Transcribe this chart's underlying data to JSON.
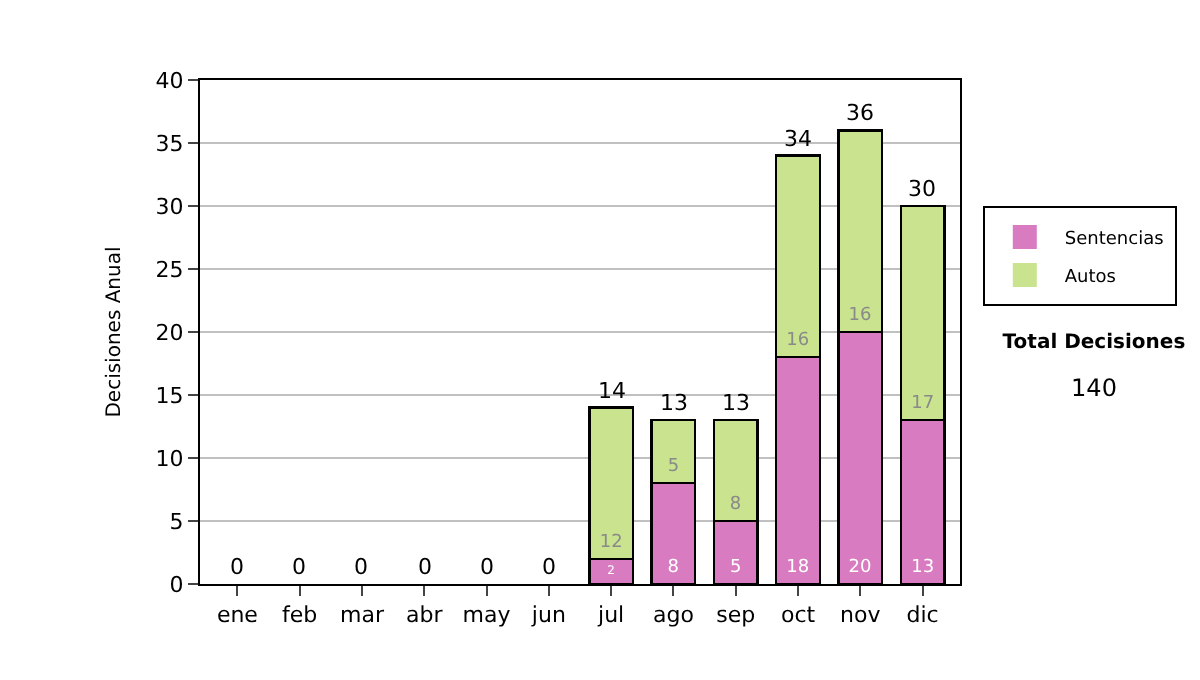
{
  "chart_data": {
    "type": "bar",
    "stacked": true,
    "ylabel": "Decisiones Anual",
    "categories": [
      "ene",
      "feb",
      "mar",
      "abr",
      "may",
      "jun",
      "jul",
      "ago",
      "sep",
      "oct",
      "nov",
      "dic"
    ],
    "series": [
      {
        "name": "Sentencias",
        "color": "#d97bc0",
        "values": [
          0,
          0,
          0,
          0,
          0,
          0,
          2,
          8,
          5,
          18,
          20,
          13
        ],
        "value_labels": [
          null,
          null,
          null,
          null,
          null,
          null,
          "2",
          "8",
          "5",
          "18",
          "20",
          "13"
        ]
      },
      {
        "name": "Autos",
        "color": "#c9e38e",
        "values": [
          0,
          0,
          0,
          0,
          0,
          0,
          12,
          5,
          8,
          16,
          16,
          17
        ],
        "value_labels": [
          null,
          null,
          null,
          null,
          null,
          null,
          "12",
          "5",
          "8",
          "16",
          "16",
          "17"
        ]
      }
    ],
    "totals": [
      "0",
      "0",
      "0",
      "0",
      "0",
      "0",
      "14",
      "13",
      "13",
      "34",
      "36",
      "30"
    ],
    "ylim": [
      0,
      40
    ],
    "yticks": [
      0,
      5,
      10,
      15,
      20,
      25,
      30,
      35,
      40
    ],
    "grid": "y",
    "legend": "right",
    "annotations": [
      "Total Decisiones",
      "140"
    ]
  }
}
